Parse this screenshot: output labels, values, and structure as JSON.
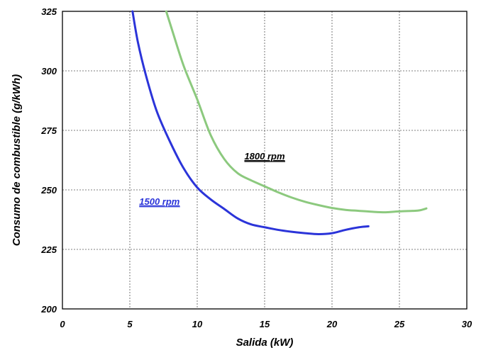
{
  "chart_data": {
    "type": "line",
    "title": "",
    "xlabel": "Salida (kW)",
    "ylabel": "Consumo de combustible (g/kWh)",
    "xlim": [
      0,
      30
    ],
    "ylim": [
      200,
      325
    ],
    "xticks": [
      "0",
      "5",
      "10",
      "15",
      "20",
      "25",
      "30"
    ],
    "yticks": [
      "200",
      "225",
      "250",
      "275",
      "300",
      "325"
    ],
    "grid": "dashed",
    "legend": "none",
    "series": [
      {
        "name": "1500 rpm",
        "color": "#2b34d9",
        "x": [
          5.2,
          5.6,
          6.2,
          7.0,
          8.0,
          9.0,
          10.0,
          11.0,
          12.0,
          13.0,
          14.0,
          15.0,
          16.0,
          17.0,
          18.0,
          19.0,
          20.0,
          21.0,
          22.0,
          22.7
        ],
        "y": [
          325,
          312,
          298,
          283,
          270,
          259,
          251,
          246,
          242,
          238,
          235.5,
          234.3,
          233.2,
          232.4,
          231.8,
          231.4,
          231.8,
          233.2,
          234.3,
          234.7
        ]
      },
      {
        "name": "1800 rpm",
        "color": "#8cc97e",
        "x": [
          7.7,
          8.2,
          9.0,
          10.0,
          11.0,
          12.0,
          13.0,
          14.0,
          15.0,
          16.0,
          17.0,
          18.0,
          19.0,
          20.0,
          21.0,
          22.0,
          23.0,
          24.0,
          25.0,
          26.0,
          26.5,
          27.0
        ],
        "y": [
          325,
          316,
          302,
          288,
          273,
          263,
          257,
          254,
          251.5,
          249,
          246.8,
          245,
          243.6,
          242.4,
          241.6,
          241.2,
          240.8,
          240.6,
          241.0,
          241.2,
          241.4,
          242.2
        ]
      }
    ],
    "annotations": [
      {
        "text": "1500 rpm",
        "x": 7.2,
        "y": 243.8,
        "color": "#2b34d9"
      },
      {
        "text": "1800 rpm",
        "x": 15.0,
        "y": 262.8,
        "color": "#000000"
      }
    ]
  }
}
